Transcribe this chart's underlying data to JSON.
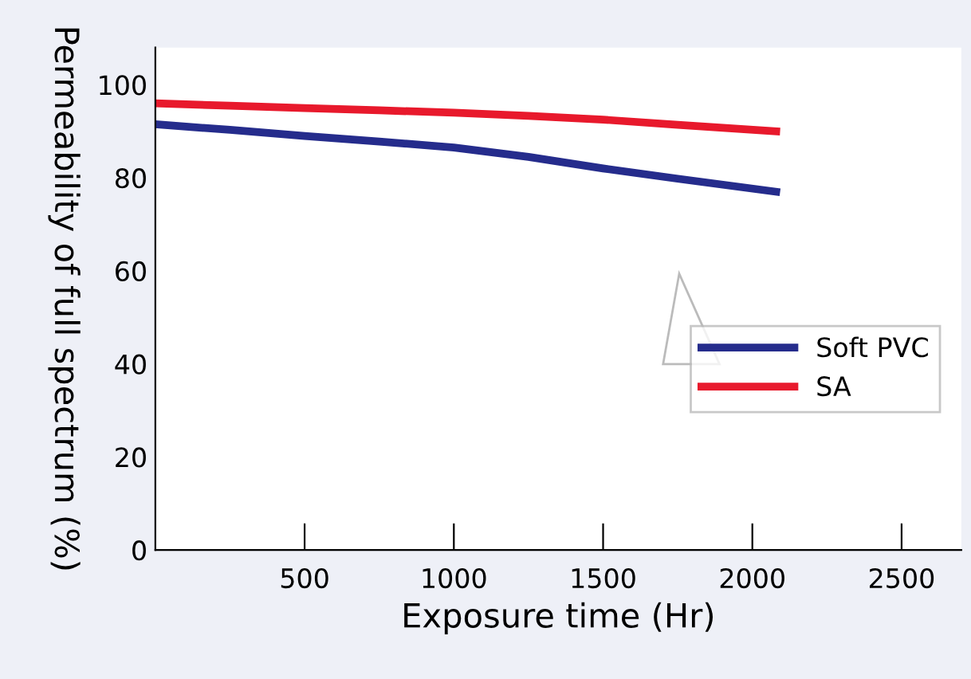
{
  "chart_data": {
    "type": "line",
    "xlabel": "Exposure time (Hr)",
    "ylabel": "Permeability of full spectrum (%)",
    "xlim": [
      0,
      2700
    ],
    "xticks": [
      500,
      1000,
      1500,
      2000,
      2500
    ],
    "ylim": [
      0,
      108
    ],
    "yticks": [
      0,
      20,
      40,
      60,
      80,
      100
    ],
    "grid": false,
    "legend": "right",
    "marker": "none",
    "line_style": "solid",
    "series": [
      {
        "name": "Soft PVC",
        "color": "#252c8c",
        "x": [
          0,
          250,
          500,
          750,
          1000,
          1250,
          1500,
          1750,
          2080
        ],
        "values": [
          91.5,
          90.3,
          89,
          87.8,
          86.5,
          84.5,
          82,
          79.8,
          77
        ]
      },
      {
        "name": "SA",
        "color": "#e8192c",
        "x": [
          0,
          250,
          500,
          750,
          1000,
          1250,
          1500,
          1750,
          2080
        ],
        "values": [
          96,
          95.5,
          95,
          94.5,
          94,
          93.3,
          92.5,
          91.4,
          90
        ]
      }
    ]
  }
}
